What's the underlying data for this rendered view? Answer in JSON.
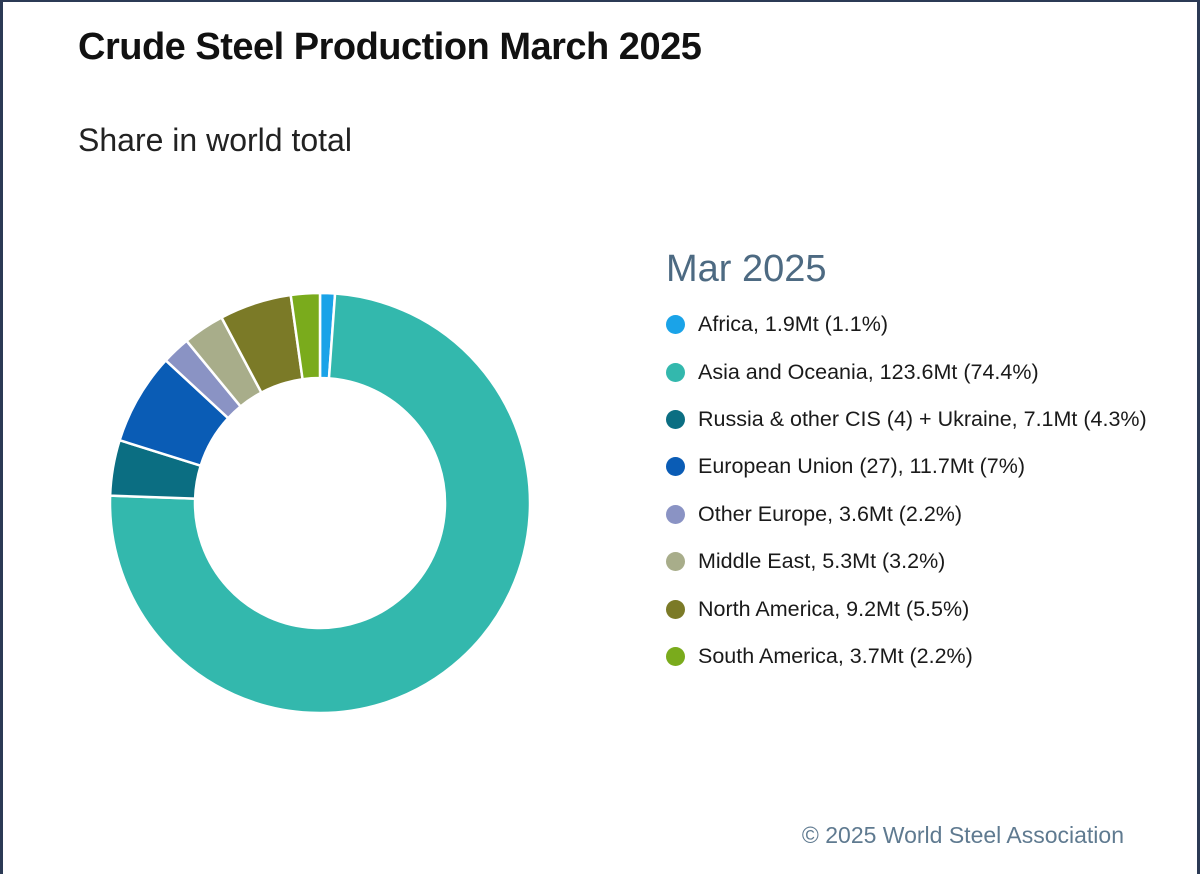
{
  "chart_data": {
    "type": "pie",
    "variant": "donut",
    "title": "Crude Steel Production March 2025",
    "subtitle": "Share in world total",
    "legend_title": "Mar 2025",
    "legend_placement": "right",
    "credit": "© 2025 World Steel Association",
    "slices": [
      {
        "name": "Africa",
        "value": 1.9,
        "unit": "Mt",
        "percent": 1.1,
        "color": "#1aa3e8",
        "label": "Africa, 1.9Mt (1.1%)"
      },
      {
        "name": "Asia and Oceania",
        "value": 123.6,
        "unit": "Mt",
        "percent": 74.4,
        "color": "#33b8ad",
        "label": "Asia and Oceania, 123.6Mt (74.4%)"
      },
      {
        "name": "Russia & other CIS (4) + Ukraine",
        "value": 7.1,
        "unit": "Mt",
        "percent": 4.3,
        "color": "#0b6e82",
        "label": "Russia & other CIS (4) + Ukraine, 7.1Mt (4.3%)"
      },
      {
        "name": "European Union (27)",
        "value": 11.7,
        "unit": "Mt",
        "percent": 7,
        "color": "#0a5cb5",
        "label": "European Union (27), 11.7Mt (7%)"
      },
      {
        "name": "Other Europe",
        "value": 3.6,
        "unit": "Mt",
        "percent": 2.2,
        "color": "#8a93c4",
        "label": "Other Europe, 3.6Mt (2.2%)"
      },
      {
        "name": "Middle East",
        "value": 5.3,
        "unit": "Mt",
        "percent": 3.2,
        "color": "#a8ad8a",
        "label": "Middle East, 5.3Mt (3.2%)"
      },
      {
        "name": "North America",
        "value": 9.2,
        "unit": "Mt",
        "percent": 5.5,
        "color": "#7b7a27",
        "label": "North America, 9.2Mt (5.5%)"
      },
      {
        "name": "South America",
        "value": 3.7,
        "unit": "Mt",
        "percent": 2.2,
        "color": "#7aab1c",
        "label": "South America, 3.7Mt (2.2%)"
      }
    ]
  }
}
